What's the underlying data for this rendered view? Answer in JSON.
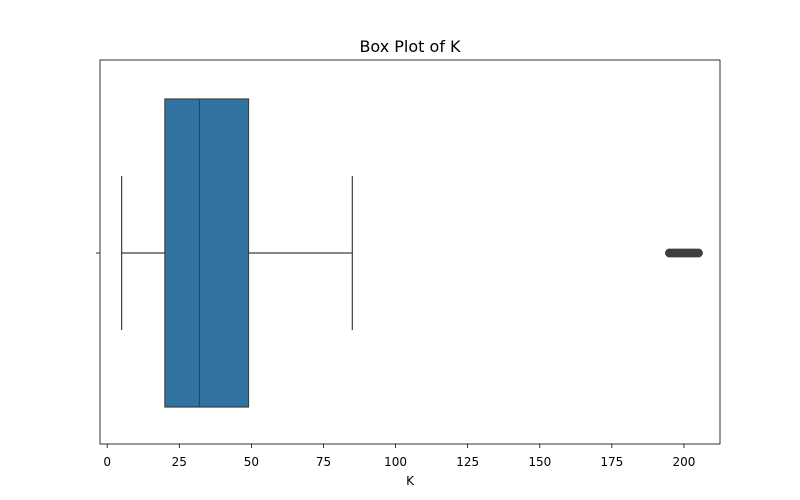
{
  "chart_data": {
    "type": "box",
    "title": "Box Plot of K",
    "xlabel": "K",
    "ylabel": "",
    "xlim": [
      -2.5,
      212.5
    ],
    "xticks": [
      0,
      25,
      50,
      75,
      100,
      125,
      150,
      175,
      200
    ],
    "orientation": "horizontal",
    "grid": false,
    "box": {
      "whisker_low": 5,
      "q1": 20,
      "median": 32,
      "q3": 49,
      "whisker_high": 85,
      "outliers": [
        195,
        196,
        197,
        198,
        199,
        200,
        201,
        202,
        203,
        204,
        205
      ]
    },
    "colors": {
      "box_fill": "#3274a1",
      "line": "#3f3f3f",
      "frame": "#000000"
    }
  }
}
